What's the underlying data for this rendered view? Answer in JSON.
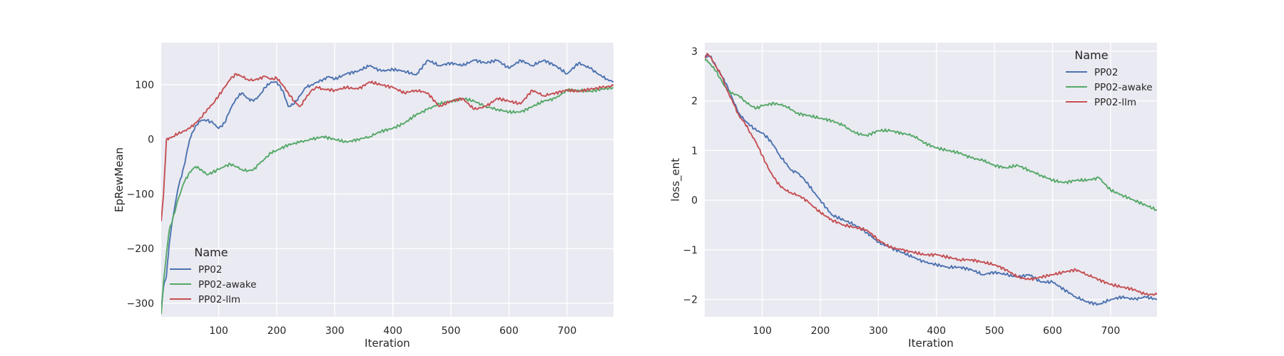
{
  "chart_data": [
    {
      "type": "line",
      "xlabel": "Iteration",
      "ylabel": "EpRewMean",
      "xlim": [
        1,
        780
      ],
      "ylim": [
        -325,
        177
      ],
      "xticks": [
        100,
        200,
        300,
        400,
        500,
        600,
        700
      ],
      "yticks": [
        -300,
        -200,
        -100,
        0,
        100
      ],
      "ytick_labels": [
        "−300",
        "−200",
        "−100",
        "0",
        "100"
      ],
      "background": "#eaeaf2",
      "grid": true,
      "legend": {
        "title": "Name",
        "placement": "lower-left"
      },
      "series": [
        {
          "name": "PP02",
          "color": "#4c72b0",
          "x": [
            1,
            5,
            10,
            15,
            20,
            30,
            40,
            50,
            60,
            70,
            80,
            90,
            100,
            110,
            120,
            130,
            140,
            150,
            160,
            170,
            180,
            190,
            200,
            210,
            220,
            230,
            240,
            250,
            260,
            270,
            280,
            290,
            300,
            320,
            340,
            360,
            380,
            400,
            420,
            440,
            460,
            480,
            500,
            520,
            540,
            560,
            580,
            600,
            620,
            640,
            660,
            680,
            700,
            720,
            740,
            760,
            770,
            780
          ],
          "y": [
            -310,
            -270,
            -250,
            -190,
            -150,
            -90,
            -50,
            0,
            25,
            35,
            35,
            30,
            20,
            30,
            55,
            75,
            85,
            75,
            70,
            80,
            95,
            105,
            105,
            90,
            60,
            65,
            80,
            95,
            100,
            105,
            110,
            115,
            110,
            120,
            125,
            135,
            125,
            128,
            125,
            118,
            145,
            135,
            140,
            135,
            145,
            140,
            145,
            130,
            145,
            135,
            145,
            135,
            120,
            140,
            130,
            115,
            110,
            105
          ]
        },
        {
          "name": "PP02-awake",
          "color": "#55a868",
          "x": [
            1,
            5,
            10,
            15,
            20,
            30,
            40,
            50,
            60,
            70,
            80,
            90,
            100,
            110,
            120,
            130,
            140,
            150,
            160,
            170,
            180,
            190,
            200,
            220,
            240,
            260,
            280,
            300,
            320,
            340,
            360,
            380,
            400,
            420,
            440,
            460,
            480,
            500,
            520,
            540,
            560,
            580,
            600,
            620,
            640,
            660,
            680,
            700,
            720,
            740,
            760,
            780
          ],
          "y": [
            -320,
            -260,
            -210,
            -165,
            -150,
            -110,
            -80,
            -60,
            -50,
            -55,
            -65,
            -60,
            -55,
            -50,
            -45,
            -50,
            -55,
            -58,
            -55,
            -45,
            -35,
            -25,
            -20,
            -10,
            -5,
            0,
            5,
            0,
            -5,
            0,
            5,
            15,
            20,
            30,
            45,
            55,
            65,
            70,
            75,
            70,
            60,
            55,
            50,
            50,
            60,
            70,
            75,
            90,
            90,
            88,
            92,
            95
          ]
        },
        {
          "name": "PP02-llm",
          "color": "#c44e52",
          "x": [
            1,
            5,
            10,
            15,
            20,
            30,
            40,
            50,
            60,
            70,
            80,
            90,
            100,
            110,
            120,
            130,
            140,
            150,
            160,
            170,
            180,
            190,
            200,
            210,
            220,
            230,
            240,
            250,
            260,
            270,
            280,
            300,
            320,
            340,
            360,
            380,
            400,
            420,
            440,
            460,
            480,
            500,
            520,
            540,
            560,
            580,
            600,
            620,
            640,
            660,
            680,
            700,
            720,
            740,
            760,
            780
          ],
          "y": [
            -150,
            -100,
            0,
            3,
            5,
            10,
            15,
            20,
            30,
            40,
            55,
            65,
            80,
            95,
            110,
            120,
            115,
            110,
            108,
            112,
            115,
            110,
            112,
            100,
            85,
            70,
            60,
            75,
            90,
            95,
            92,
            90,
            95,
            92,
            105,
            100,
            95,
            85,
            90,
            85,
            60,
            70,
            75,
            55,
            60,
            75,
            70,
            65,
            90,
            80,
            85,
            90,
            88,
            92,
            95,
            98
          ]
        }
      ]
    },
    {
      "type": "line",
      "xlabel": "Iteration",
      "ylabel": "loss_ent",
      "xlim": [
        1,
        780
      ],
      "ylim": [
        -2.35,
        3.17
      ],
      "xticks": [
        100,
        200,
        300,
        400,
        500,
        600,
        700
      ],
      "yticks": [
        -2,
        -1,
        0,
        1,
        2,
        3
      ],
      "ytick_labels": [
        "−2",
        "−1",
        "0",
        "1",
        "2",
        "3"
      ],
      "background": "#eaeaf2",
      "grid": true,
      "legend": {
        "title": "Name",
        "placement": "upper-right"
      },
      "series": [
        {
          "name": "PP02",
          "color": "#4c72b0",
          "x": [
            1,
            10,
            20,
            30,
            40,
            50,
            60,
            70,
            80,
            90,
            100,
            110,
            120,
            130,
            140,
            150,
            160,
            170,
            180,
            190,
            200,
            210,
            220,
            240,
            260,
            280,
            300,
            320,
            340,
            360,
            380,
            400,
            420,
            440,
            460,
            480,
            500,
            520,
            540,
            560,
            580,
            600,
            620,
            640,
            660,
            680,
            700,
            720,
            740,
            760,
            780
          ],
          "y": [
            2.9,
            2.9,
            2.7,
            2.5,
            2.3,
            2.0,
            1.75,
            1.6,
            1.5,
            1.4,
            1.35,
            1.25,
            1.1,
            0.9,
            0.75,
            0.6,
            0.55,
            0.45,
            0.3,
            0.15,
            0.0,
            -0.15,
            -0.3,
            -0.4,
            -0.5,
            -0.65,
            -0.85,
            -0.95,
            -1.05,
            -1.15,
            -1.25,
            -1.3,
            -1.35,
            -1.35,
            -1.4,
            -1.5,
            -1.45,
            -1.5,
            -1.55,
            -1.5,
            -1.65,
            -1.65,
            -1.8,
            -1.95,
            -2.05,
            -2.1,
            -2.0,
            -1.95,
            -2.0,
            -1.95,
            -2.0
          ]
        },
        {
          "name": "PP02-awake",
          "color": "#55a868",
          "x": [
            1,
            10,
            20,
            30,
            40,
            50,
            60,
            70,
            80,
            90,
            100,
            120,
            140,
            160,
            180,
            200,
            220,
            240,
            260,
            280,
            300,
            320,
            340,
            360,
            380,
            400,
            420,
            440,
            460,
            480,
            500,
            520,
            540,
            560,
            580,
            600,
            620,
            640,
            660,
            680,
            700,
            720,
            740,
            760,
            780
          ],
          "y": [
            2.85,
            2.75,
            2.6,
            2.4,
            2.2,
            2.15,
            2.1,
            2.0,
            1.9,
            1.85,
            1.9,
            1.95,
            1.9,
            1.75,
            1.7,
            1.65,
            1.6,
            1.5,
            1.35,
            1.3,
            1.4,
            1.4,
            1.35,
            1.3,
            1.15,
            1.05,
            1.0,
            0.95,
            0.85,
            0.8,
            0.7,
            0.65,
            0.7,
            0.6,
            0.5,
            0.4,
            0.35,
            0.4,
            0.4,
            0.45,
            0.2,
            0.1,
            0.0,
            -0.1,
            -0.2
          ]
        },
        {
          "name": "PP02-llm",
          "color": "#c44e52",
          "x": [
            1,
            5,
            10,
            20,
            30,
            40,
            50,
            60,
            70,
            80,
            90,
            100,
            110,
            120,
            130,
            140,
            150,
            160,
            170,
            180,
            190,
            200,
            220,
            240,
            260,
            280,
            300,
            320,
            340,
            360,
            380,
            400,
            420,
            440,
            460,
            480,
            500,
            520,
            540,
            560,
            580,
            600,
            620,
            640,
            660,
            680,
            700,
            720,
            740,
            760,
            780
          ],
          "y": [
            2.85,
            2.95,
            2.9,
            2.7,
            2.5,
            2.2,
            1.95,
            1.7,
            1.55,
            1.35,
            1.15,
            0.9,
            0.65,
            0.45,
            0.3,
            0.2,
            0.15,
            0.1,
            0.05,
            -0.05,
            -0.15,
            -0.25,
            -0.4,
            -0.5,
            -0.55,
            -0.6,
            -0.8,
            -0.95,
            -1.0,
            -1.05,
            -1.1,
            -1.1,
            -1.15,
            -1.2,
            -1.2,
            -1.25,
            -1.3,
            -1.4,
            -1.55,
            -1.6,
            -1.55,
            -1.5,
            -1.45,
            -1.4,
            -1.5,
            -1.6,
            -1.7,
            -1.75,
            -1.8,
            -1.9,
            -1.9
          ]
        }
      ]
    }
  ]
}
